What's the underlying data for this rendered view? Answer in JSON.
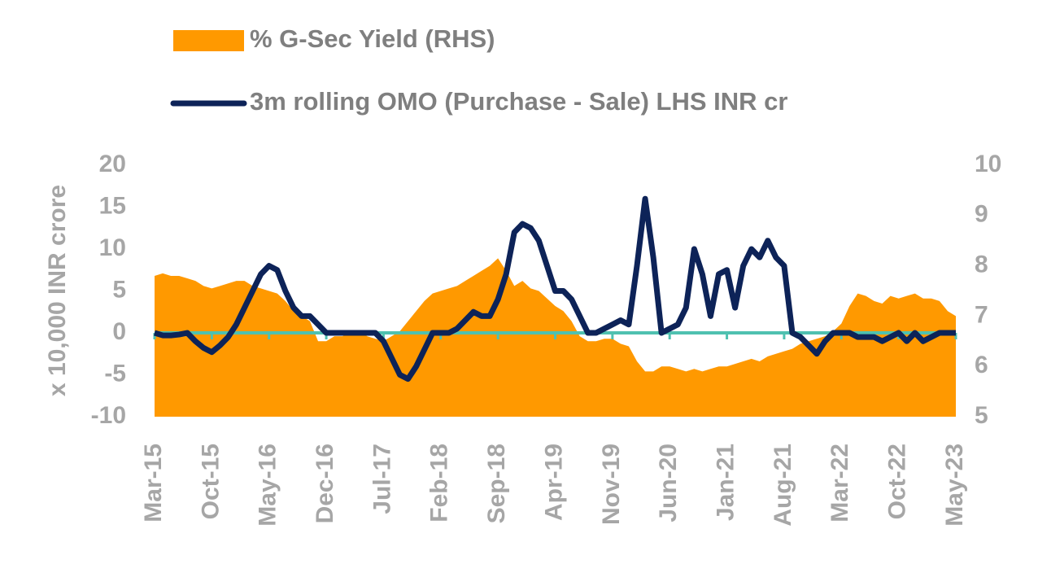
{
  "chart_data": {
    "type": "area-line",
    "y_label": "x 10,000 INR crore",
    "categories": [
      "Mar-15",
      null,
      null,
      null,
      null,
      null,
      null,
      "Oct-15",
      null,
      null,
      null,
      null,
      null,
      null,
      "May-16",
      null,
      null,
      null,
      null,
      null,
      null,
      "Dec-16",
      null,
      null,
      null,
      null,
      null,
      null,
      "Jul-17",
      null,
      null,
      null,
      null,
      null,
      null,
      "Feb-18",
      null,
      null,
      null,
      null,
      null,
      null,
      "Sep-18",
      null,
      null,
      null,
      null,
      null,
      null,
      "Apr-19",
      null,
      null,
      null,
      null,
      null,
      null,
      "Nov-19",
      null,
      null,
      null,
      null,
      null,
      null,
      "Jun-20",
      null,
      null,
      null,
      null,
      null,
      null,
      "Jan-21",
      null,
      null,
      null,
      null,
      null,
      null,
      "Aug-21",
      null,
      null,
      null,
      null,
      null,
      null,
      "Mar-22",
      null,
      null,
      null,
      null,
      null,
      null,
      "Oct-22",
      null,
      null,
      null,
      null,
      null,
      null,
      "May-23"
    ],
    "series": [
      {
        "name": "% G-Sec Yield (RHS)",
        "type": "area",
        "axis": "y2",
        "color": "#ff9900",
        "values": [
          7.8,
          7.85,
          7.8,
          7.8,
          7.75,
          7.7,
          7.6,
          7.55,
          7.6,
          7.65,
          7.7,
          7.7,
          7.6,
          7.55,
          7.5,
          7.45,
          7.3,
          7.1,
          7.0,
          6.9,
          6.5,
          6.5,
          6.6,
          6.6,
          6.7,
          6.7,
          6.6,
          6.55,
          6.5,
          6.6,
          6.7,
          6.9,
          7.1,
          7.3,
          7.45,
          7.5,
          7.55,
          7.6,
          7.7,
          7.8,
          7.9,
          8.0,
          8.15,
          7.9,
          7.6,
          7.7,
          7.55,
          7.5,
          7.35,
          7.2,
          7.1,
          6.9,
          6.6,
          6.5,
          6.5,
          6.55,
          6.55,
          6.45,
          6.4,
          6.1,
          5.9,
          5.9,
          6.0,
          6.0,
          5.95,
          5.9,
          5.95,
          5.9,
          5.95,
          6.0,
          6.0,
          6.05,
          6.1,
          6.15,
          6.1,
          6.2,
          6.25,
          6.3,
          6.35,
          6.45,
          6.5,
          6.55,
          6.6,
          6.7,
          6.85,
          7.2,
          7.45,
          7.4,
          7.3,
          7.25,
          7.4,
          7.35,
          7.4,
          7.45,
          7.35,
          7.35,
          7.3,
          7.1,
          7.0
        ]
      },
      {
        "name": "3m rolling OMO (Purchase - Sale) LHS INR cr",
        "type": "line",
        "axis": "y",
        "color": "#0d2358",
        "values": [
          0,
          -0.3,
          -0.3,
          -0.2,
          0,
          -1,
          -1.8,
          -2.3,
          -1.5,
          -0.5,
          1,
          3,
          5,
          7,
          8,
          7.5,
          5,
          3,
          2,
          2,
          1,
          0,
          0,
          0,
          0,
          0,
          0,
          0,
          -1,
          -3,
          -5,
          -5.5,
          -4,
          -2,
          0,
          0,
          0,
          0.5,
          1.5,
          2.5,
          2,
          2,
          4,
          7,
          12,
          13,
          12.5,
          11,
          8,
          5,
          5,
          4,
          2,
          0,
          0,
          0.5,
          1,
          1.5,
          1,
          8,
          16,
          9,
          0,
          0.5,
          1,
          3,
          10,
          7,
          2,
          7,
          7.5,
          3,
          8,
          10,
          9,
          11,
          9,
          8,
          0,
          -0.5,
          -1.5,
          -2.5,
          -1,
          0,
          0,
          0,
          -0.5,
          -0.5,
          -0.5,
          -1,
          -0.5,
          0,
          -1,
          0,
          -1,
          -0.5,
          0,
          0,
          0
        ]
      }
    ],
    "ylim": [
      -10,
      20
    ],
    "yticks": [
      -10,
      -5,
      0,
      5,
      10,
      15,
      20
    ],
    "y2lim": [
      5,
      10
    ],
    "y2ticks": [
      5,
      6,
      7,
      8,
      9,
      10
    ],
    "zero_line_color": "#4fc1b0",
    "legend_position": "top"
  }
}
